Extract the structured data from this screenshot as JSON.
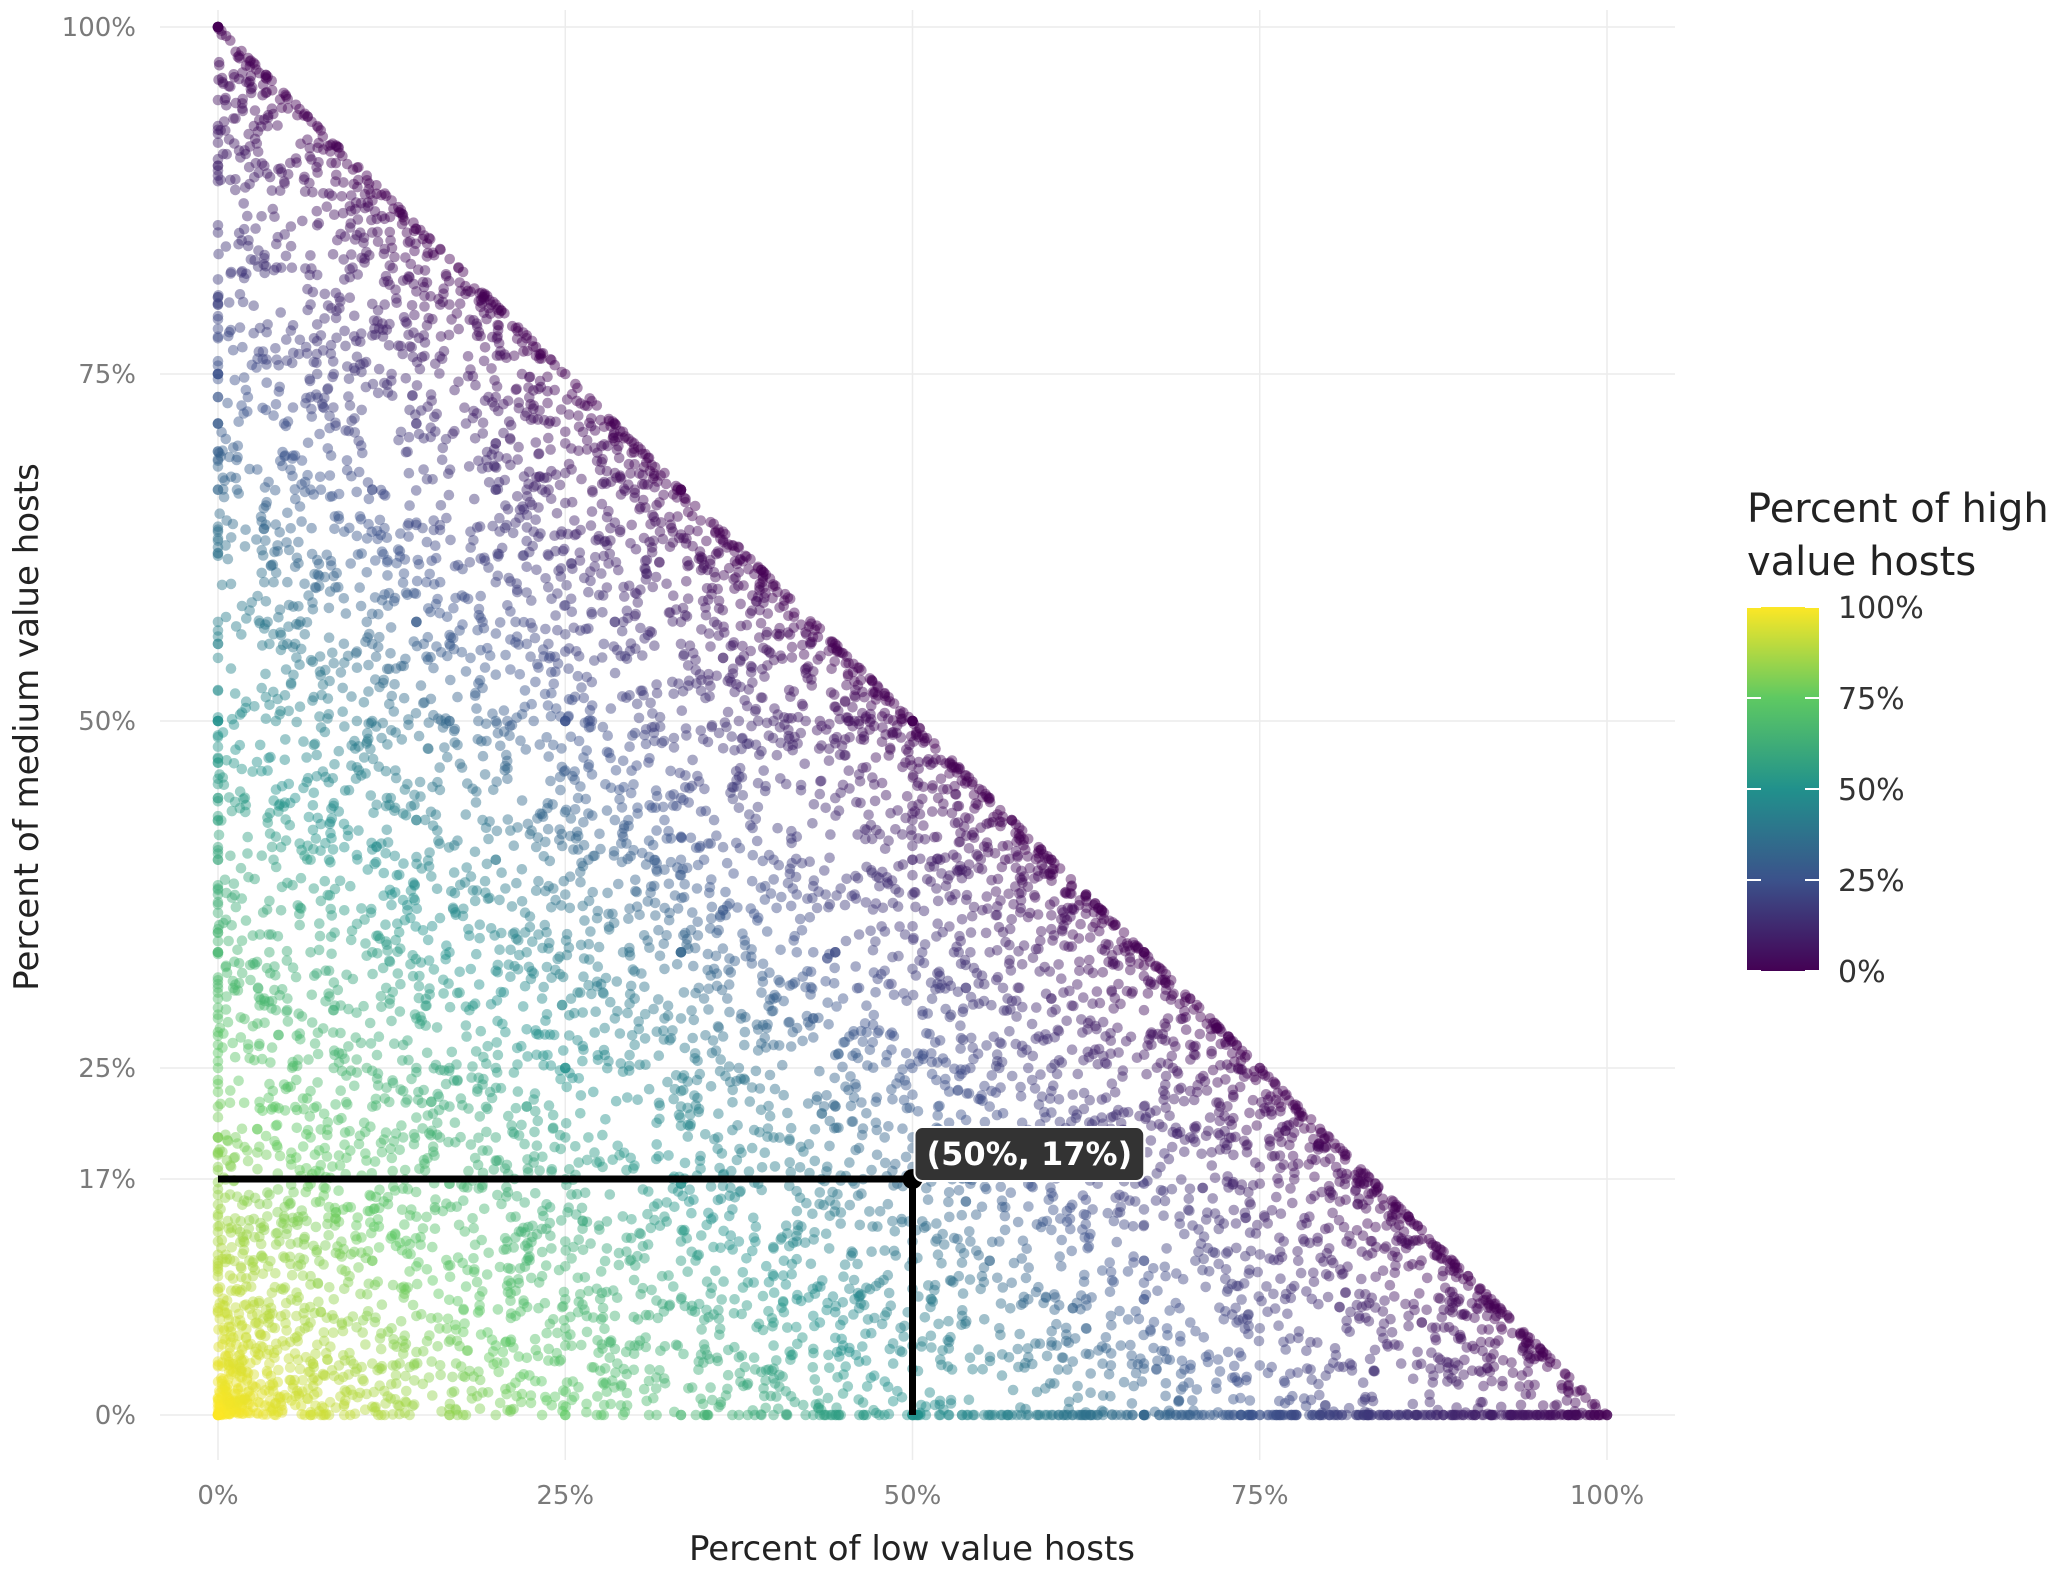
{
  "chart_data": {
    "type": "scatter",
    "title": "",
    "xlabel": "Percent of low value hosts",
    "ylabel": "Percent of medium value hosts",
    "xlim": [
      0,
      1
    ],
    "ylim": [
      0,
      1
    ],
    "x_ticks": [
      0,
      0.25,
      0.5,
      0.75,
      1
    ],
    "x_tick_labels": [
      "0%",
      "25%",
      "50%",
      "75%",
      "100%"
    ],
    "y_ticks": [
      0,
      0.17,
      0.25,
      0.5,
      0.75,
      1
    ],
    "y_tick_labels": [
      "0%",
      "17%",
      "25%",
      "50%",
      "75%",
      "100%"
    ],
    "grid": true,
    "color_scale": {
      "title": [
        "Percent of high",
        "value hosts"
      ],
      "palette": [
        "#440154",
        "#3b528b",
        "#21918c",
        "#5ec962",
        "#fde725"
      ],
      "ticks": [
        1,
        0.75,
        0.5,
        0.25,
        0
      ],
      "tick_labels": [
        "100%",
        "75%",
        "50%",
        "25%",
        "0%"
      ],
      "position": "right"
    },
    "point_distribution": {
      "description_free": true,
      "region": "x + y <= 1",
      "color_value": "1 - x - y"
    },
    "highlight": {
      "x": 0.5,
      "y": 0.17,
      "label": "(50%, 17%)",
      "color": "#000000"
    }
  }
}
